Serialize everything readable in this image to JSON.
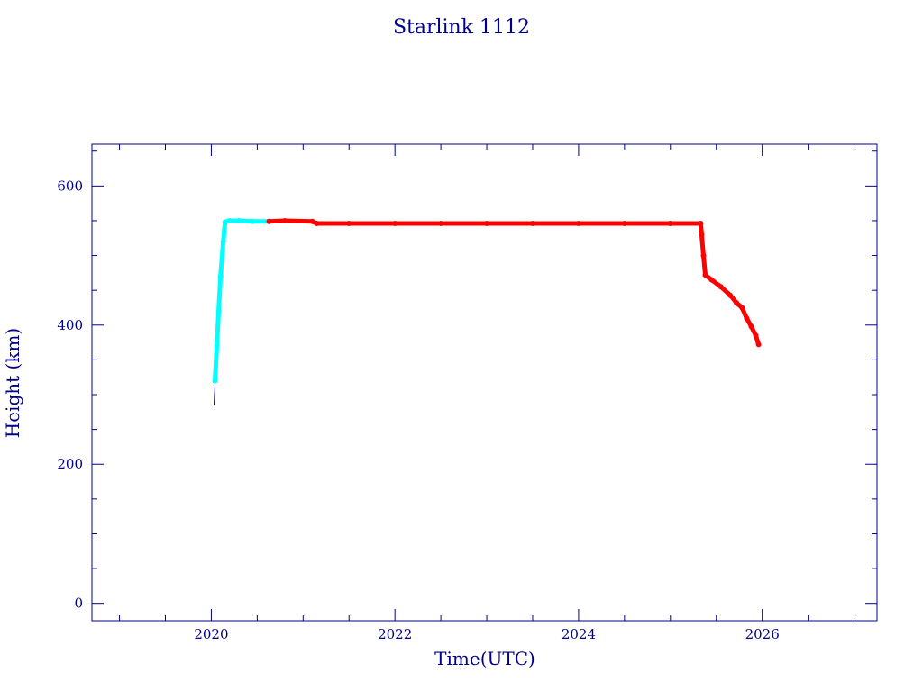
{
  "chart_data": {
    "type": "scatter",
    "title": "Starlink 1112",
    "xlabel": "Time(UTC)",
    "ylabel": "Height (km)",
    "xlim": [
      2018.7,
      2027.25
    ],
    "ylim": [
      -25,
      660
    ],
    "x_ticks": [
      2020,
      2022,
      2024,
      2026
    ],
    "x_minor_ticks": [
      2019,
      2019.5,
      2020.5,
      2021,
      2021.5,
      2022.5,
      2023,
      2023.5,
      2024.5,
      2025,
      2025.5,
      2026.5,
      2027
    ],
    "y_ticks": [
      0,
      200,
      400,
      600
    ],
    "y_minor_ticks": [
      50,
      100,
      150,
      250,
      300,
      350,
      450,
      500,
      550,
      650
    ],
    "grid": false,
    "legend": "none",
    "colors": {
      "axis": "#00008b",
      "early": "#00008b",
      "raise": "#00ffff",
      "operational": "#ff0000"
    },
    "series": [
      {
        "color_key": "early",
        "style": "thin-line",
        "points": [
          [
            2020.03,
            285
          ],
          [
            2020.035,
            300
          ],
          [
            2020.04,
            312
          ]
        ]
      },
      {
        "color_key": "raise",
        "style": "thick",
        "points": [
          [
            2020.04,
            320
          ],
          [
            2020.06,
            370
          ],
          [
            2020.08,
            420
          ],
          [
            2020.1,
            470
          ],
          [
            2020.13,
            520
          ],
          [
            2020.15,
            548
          ],
          [
            2020.2,
            550
          ],
          [
            2020.3,
            550
          ],
          [
            2020.45,
            549
          ],
          [
            2020.62,
            549
          ]
        ]
      },
      {
        "color_key": "operational",
        "style": "thick",
        "points": [
          [
            2020.63,
            549
          ],
          [
            2020.8,
            550
          ],
          [
            2021.1,
            549
          ],
          [
            2021.15,
            546
          ],
          [
            2021.5,
            546
          ],
          [
            2022.0,
            546
          ],
          [
            2022.5,
            546
          ],
          [
            2023.0,
            546
          ],
          [
            2023.5,
            546
          ],
          [
            2024.0,
            546
          ],
          [
            2024.5,
            546
          ],
          [
            2025.0,
            546
          ],
          [
            2025.33,
            546
          ],
          [
            2025.34,
            530
          ],
          [
            2025.36,
            500
          ],
          [
            2025.38,
            472
          ],
          [
            2025.45,
            465
          ],
          [
            2025.55,
            455
          ],
          [
            2025.65,
            443
          ],
          [
            2025.72,
            432
          ],
          [
            2025.78,
            425
          ],
          [
            2025.83,
            410
          ],
          [
            2025.88,
            398
          ],
          [
            2025.93,
            385
          ],
          [
            2025.96,
            372
          ]
        ]
      }
    ]
  }
}
